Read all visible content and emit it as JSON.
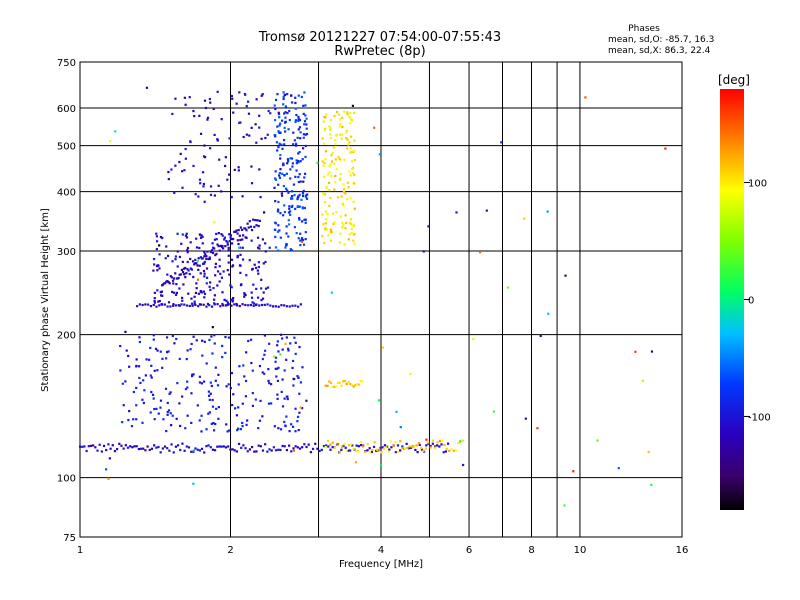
{
  "header": {
    "title_line1": "Tromsø 20121227 07:54:00-07:55:43",
    "title_line2": "RwPretec (8p)"
  },
  "phase_info": {
    "heading": "Phases",
    "line_o": "mean, sd,O: -85.7, 16.3",
    "line_x": "mean, sd,X:  86.3, 22.4"
  },
  "colorbar": {
    "label": "[deg]",
    "ticks": [
      {
        "value": 100,
        "label": "100"
      },
      {
        "value": 0,
        "label": "0"
      },
      {
        "value": -100,
        "label": "-100"
      }
    ],
    "range": [
      -180,
      180
    ]
  },
  "chart_data": {
    "type": "scatter",
    "title": "Tromsø 20121227 07:54:00-07:55:43",
    "subtitle": "RwPretec (8p)",
    "xlabel": "Frequency [MHz]",
    "ylabel": "Stationary phase Virtual Height [km]",
    "x_scale": "log",
    "y_scale": "log",
    "xlim": [
      1,
      16
    ],
    "ylim": [
      75,
      750
    ],
    "x_ticks": [
      1,
      2,
      4,
      6,
      8,
      10,
      16
    ],
    "x_minor_gridlines": [
      3,
      5,
      7,
      9
    ],
    "y_ticks": [
      75,
      100,
      200,
      300,
      400,
      500,
      600,
      750
    ],
    "grid": true,
    "color_encoding": "phase (deg)",
    "clusters": [
      {
        "desc": "E-layer trace",
        "x_range": [
          1.0,
          5.5
        ],
        "y_range": [
          113,
          118
        ],
        "phase_approx": -110,
        "n": 170,
        "shape": "line"
      },
      {
        "desc": "E-layer trace high freq",
        "x_range": [
          3.1,
          5.9
        ],
        "y_range": [
          113,
          120
        ],
        "phase_approx": 110,
        "n": 60,
        "shape": "line"
      },
      {
        "desc": "F1 trace rising",
        "x_range": [
          1.45,
          2.3
        ],
        "y_range": [
          250,
          350
        ],
        "phase_approx": -115,
        "n": 90,
        "shape": "curve"
      },
      {
        "desc": "F cluster blue",
        "x_range": [
          1.4,
          2.4
        ],
        "y_range": [
          230,
          330
        ],
        "phase_approx": -110,
        "n": 220,
        "shape": "cloud"
      },
      {
        "desc": "F2 trace O",
        "x_range": [
          2.45,
          2.85
        ],
        "y_range": [
          300,
          650
        ],
        "phase_approx": -75,
        "n": 200,
        "shape": "cloud"
      },
      {
        "desc": "F2 trace X",
        "x_range": [
          3.05,
          3.55
        ],
        "y_range": [
          310,
          590
        ],
        "phase_approx": 100,
        "n": 160,
        "shape": "cloud"
      },
      {
        "desc": "Scattered mid",
        "x_range": [
          1.2,
          2.8
        ],
        "y_range": [
          125,
          200
        ],
        "phase_approx": -95,
        "n": 250,
        "shape": "cloud"
      },
      {
        "desc": "Upper scatter",
        "x_range": [
          1.5,
          2.8
        ],
        "y_range": [
          380,
          650
        ],
        "phase_approx": -110,
        "n": 120,
        "shape": "cloud"
      },
      {
        "desc": "Mid yellow band",
        "x_range": [
          3.1,
          3.7
        ],
        "y_range": [
          155,
          160
        ],
        "phase_approx": 110,
        "n": 22,
        "shape": "line"
      },
      {
        "desc": "Horizontal streak 230km",
        "x_range": [
          1.3,
          2.8
        ],
        "y_range": [
          229,
          232
        ],
        "phase_approx": -110,
        "n": 60,
        "shape": "line"
      }
    ]
  }
}
